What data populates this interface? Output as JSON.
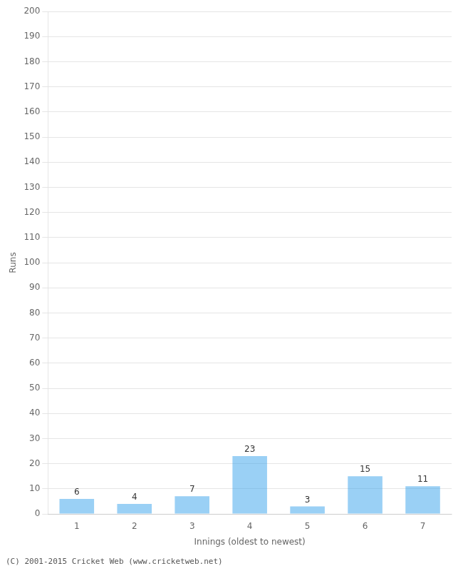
{
  "chart_data": {
    "type": "bar",
    "categories": [
      "1",
      "2",
      "3",
      "4",
      "5",
      "6",
      "7"
    ],
    "values": [
      6,
      4,
      7,
      23,
      3,
      15,
      11
    ],
    "xlabel": "Innings (oldest to newest)",
    "ylabel": "Runs",
    "ylim": [
      0,
      200
    ],
    "yticks": [
      0,
      10,
      20,
      30,
      40,
      50,
      60,
      70,
      80,
      90,
      100,
      110,
      120,
      130,
      140,
      150,
      160,
      170,
      180,
      190,
      200
    ],
    "grid": true,
    "data_labels": true,
    "annotations": [
      "(C) 2001-2015 Cricket Web (www.cricketweb.net)"
    ]
  }
}
